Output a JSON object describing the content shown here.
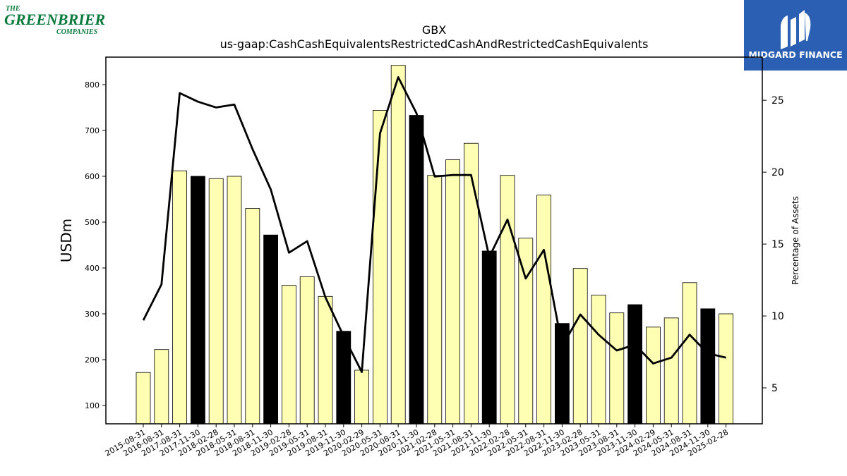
{
  "company_logo": {
    "line1": "THE",
    "line2": "GREENBRIER",
    "line3": "COMPANIES",
    "color": "#0a7a3c"
  },
  "brand_logo": {
    "text": "MIDGARD FINANCE",
    "bg": "#2b5fb4"
  },
  "chart_data": {
    "type": "bar",
    "title": "GBX",
    "subtitle": "us-gaap:CashCashEquivalentsRestrictedCashAndRestrictedCashEquivalents",
    "ylabel": "USDm",
    "y2label": "Percentage of Assets",
    "ylim": [
      60,
      860
    ],
    "y2lim": [
      2.5,
      28.0
    ],
    "yticks": [
      100,
      200,
      300,
      400,
      500,
      600,
      700,
      800
    ],
    "y2ticks": [
      5,
      10,
      15,
      20,
      25
    ],
    "categories": [
      "2015-08-31",
      "2016-08-31",
      "2017-08-31",
      "2017-11-30",
      "2018-02-28",
      "2018-05-31",
      "2018-08-31",
      "2018-11-30",
      "2019-02-28",
      "2019-05-31",
      "2019-08-31",
      "2019-11-30",
      "2020-02-29",
      "2020-05-31",
      "2020-08-31",
      "2020-11-30",
      "2021-02-28",
      "2021-05-31",
      "2021-08-31",
      "2021-11-30",
      "2022-02-28",
      "2022-05-31",
      "2022-08-31",
      "2022-11-30",
      "2023-02-28",
      "2023-05-31",
      "2023-08-31",
      "2023-11-30",
      "2024-02-29",
      "2024-05-31",
      "2024-08-31",
      "2024-11-30",
      "2025-02-28"
    ],
    "series": [
      {
        "type": "bar",
        "values": [
          172,
          222,
          612,
          600,
          595,
          600,
          530,
          472,
          362,
          381,
          338,
          262,
          177,
          744,
          842,
          733,
          602,
          636,
          672,
          437,
          602,
          465,
          559,
          279,
          399,
          341,
          302,
          320,
          271,
          291,
          368,
          311,
          300
        ]
      },
      {
        "type": "line",
        "axis": "right",
        "values": [
          9.7,
          12.2,
          25.5,
          24.9,
          24.5,
          24.7,
          21.6,
          18.8,
          14.4,
          15.2,
          11.3,
          8.6,
          6.1,
          22.7,
          26.6,
          24.1,
          19.7,
          19.8,
          19.8,
          14.1,
          16.7,
          12.6,
          14.6,
          7.9,
          10.1,
          8.7,
          7.6,
          8.0,
          6.7,
          7.1,
          8.7,
          7.4,
          7.1
        ]
      }
    ],
    "highlight_color": "#000000",
    "bar_color": "#ffffb3",
    "line_color": "#000000"
  }
}
